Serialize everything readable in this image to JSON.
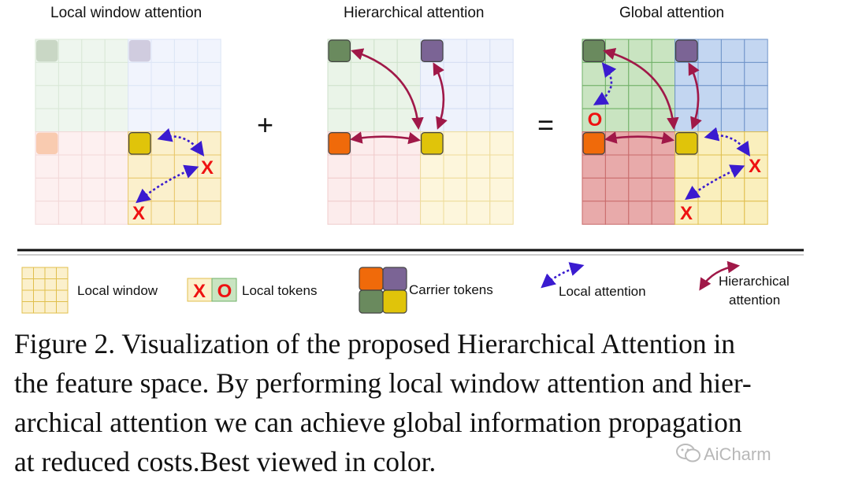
{
  "panels": {
    "local": {
      "title": "Local window attention"
    },
    "hierarchical": {
      "title": "Hierarchical attention"
    },
    "global": {
      "title": "Global attention"
    }
  },
  "operators": {
    "plus": "+",
    "equals": "="
  },
  "markers": {
    "x": "X",
    "o": "O"
  },
  "legend": {
    "local_window": "Local window",
    "local_tokens": "Local tokens",
    "carrier_tokens": "Carrier tokens",
    "local_attention": "Local attention",
    "hierarchical_attention_line1": "Hierarchical",
    "hierarchical_attention_line2": "attention"
  },
  "caption": {
    "line1": "Figure 2. Visualization of the proposed Hierarchical Attention in",
    "line2": "the feature space. By performing local window attention and hier-",
    "line3": "archical attention we can achieve global information propagation",
    "line4": "at reduced costs.Best viewed in color."
  },
  "watermark": "AiCharm",
  "colors": {
    "green": "#6a8a5e",
    "purple": "#7b6495",
    "orange": "#f06a0a",
    "yellow": "#e0c40a",
    "local_arrow": "#3a1bd0",
    "hier_arrow": "#a01848",
    "marker_red": "#ee1111"
  }
}
